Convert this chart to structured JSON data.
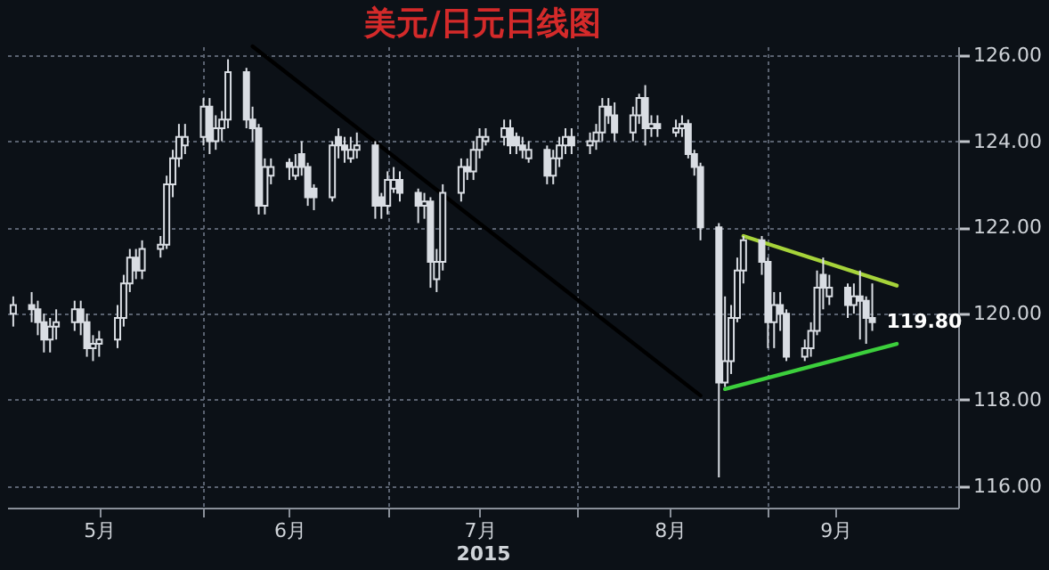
{
  "chart_data": {
    "type": "candlestick",
    "title": "美元/日元日线图",
    "xlabel": "2015",
    "x": [
      "2015-05-01",
      "2015-05-04",
      "2015-05-05",
      "2015-05-06",
      "2015-05-07",
      "2015-05-08",
      "2015-05-11",
      "2015-05-12",
      "2015-05-13",
      "2015-05-14",
      "2015-05-15",
      "2015-05-18",
      "2015-05-19",
      "2015-05-20",
      "2015-05-21",
      "2015-05-22",
      "2015-05-25",
      "2015-05-26",
      "2015-05-27",
      "2015-05-28",
      "2015-05-29",
      "2015-06-01",
      "2015-06-02",
      "2015-06-03",
      "2015-06-04",
      "2015-06-05",
      "2015-06-08",
      "2015-06-09",
      "2015-06-10",
      "2015-06-11",
      "2015-06-12",
      "2015-06-15",
      "2015-06-16",
      "2015-06-17",
      "2015-06-18",
      "2015-06-19",
      "2015-06-22",
      "2015-06-23",
      "2015-06-24",
      "2015-06-25",
      "2015-06-26",
      "2015-06-29",
      "2015-06-30",
      "2015-07-01",
      "2015-07-02",
      "2015-07-03",
      "2015-07-06",
      "2015-07-07",
      "2015-07-08",
      "2015-07-09",
      "2015-07-10",
      "2015-07-13",
      "2015-07-14",
      "2015-07-15",
      "2015-07-16",
      "2015-07-17",
      "2015-07-20",
      "2015-07-21",
      "2015-07-22",
      "2015-07-23",
      "2015-07-24",
      "2015-07-27",
      "2015-07-28",
      "2015-07-29",
      "2015-07-30",
      "2015-07-31",
      "2015-08-03",
      "2015-08-04",
      "2015-08-05",
      "2015-08-06",
      "2015-08-07",
      "2015-08-10",
      "2015-08-11",
      "2015-08-12",
      "2015-08-13",
      "2015-08-14",
      "2015-08-17",
      "2015-08-18",
      "2015-08-19",
      "2015-08-20",
      "2015-08-21",
      "2015-08-24",
      "2015-08-25",
      "2015-08-26",
      "2015-08-27",
      "2015-08-28",
      "2015-08-31",
      "2015-09-01",
      "2015-09-02",
      "2015-09-03",
      "2015-09-04",
      "2015-09-07",
      "2015-09-08",
      "2015-09-09",
      "2015-09-10",
      "2015-09-11",
      "2015-09-14",
      "2015-09-15",
      "2015-09-16",
      "2015-09-17",
      "2015-09-18"
    ],
    "ohlc": [
      [
        120.0,
        120.4,
        119.7,
        120.2
      ],
      [
        120.2,
        120.5,
        119.8,
        120.1
      ],
      [
        120.1,
        120.3,
        119.5,
        119.8
      ],
      [
        119.8,
        120.0,
        119.1,
        119.4
      ],
      [
        119.4,
        119.9,
        119.1,
        119.7
      ],
      [
        119.7,
        120.1,
        119.4,
        119.8
      ],
      [
        119.8,
        120.3,
        119.6,
        120.1
      ],
      [
        120.1,
        120.3,
        119.5,
        119.8
      ],
      [
        119.8,
        120.0,
        119.0,
        119.2
      ],
      [
        119.2,
        119.5,
        118.9,
        119.3
      ],
      [
        119.3,
        119.6,
        119.0,
        119.4
      ],
      [
        119.4,
        120.2,
        119.2,
        119.9
      ],
      [
        119.9,
        120.9,
        119.7,
        120.7
      ],
      [
        120.7,
        121.5,
        120.5,
        121.3
      ],
      [
        121.3,
        121.5,
        120.8,
        121.0
      ],
      [
        121.0,
        121.7,
        120.8,
        121.5
      ],
      [
        121.5,
        121.8,
        121.3,
        121.6
      ],
      [
        121.6,
        123.2,
        121.5,
        123.0
      ],
      [
        123.0,
        123.8,
        122.7,
        123.6
      ],
      [
        123.6,
        124.4,
        123.4,
        124.1
      ],
      [
        123.9,
        124.4,
        123.7,
        124.1
      ],
      [
        124.1,
        125.0,
        123.9,
        124.8
      ],
      [
        124.8,
        125.0,
        123.7,
        124.0
      ],
      [
        124.0,
        124.6,
        123.8,
        124.3
      ],
      [
        124.3,
        124.7,
        124.0,
        124.5
      ],
      [
        124.5,
        125.9,
        124.3,
        125.6
      ],
      [
        125.6,
        125.7,
        124.3,
        124.5
      ],
      [
        124.5,
        124.8,
        124.0,
        124.3
      ],
      [
        124.3,
        124.4,
        122.3,
        122.5
      ],
      [
        122.5,
        123.6,
        122.3,
        123.4
      ],
      [
        123.2,
        123.6,
        123.0,
        123.4
      ],
      [
        123.5,
        123.6,
        123.1,
        123.4
      ],
      [
        123.2,
        123.7,
        123.1,
        123.4
      ],
      [
        123.7,
        124.0,
        123.2,
        123.4
      ],
      [
        123.4,
        123.5,
        122.5,
        122.7
      ],
      [
        122.9,
        123.0,
        122.4,
        122.7
      ],
      [
        122.7,
        124.0,
        122.6,
        123.9
      ],
      [
        124.1,
        124.3,
        123.6,
        123.9
      ],
      [
        123.9,
        124.1,
        123.5,
        123.8
      ],
      [
        123.6,
        124.1,
        123.5,
        123.8
      ],
      [
        123.8,
        124.2,
        123.6,
        123.9
      ],
      [
        123.9,
        124.0,
        122.2,
        122.5
      ],
      [
        122.7,
        122.8,
        122.2,
        122.5
      ],
      [
        122.5,
        123.3,
        122.3,
        123.1
      ],
      [
        122.9,
        123.4,
        122.8,
        123.1
      ],
      [
        123.1,
        123.3,
        122.6,
        122.8
      ],
      [
        122.8,
        122.9,
        122.1,
        122.5
      ],
      [
        122.5,
        122.8,
        122.2,
        122.6
      ],
      [
        122.6,
        122.7,
        120.6,
        121.2
      ],
      [
        120.8,
        121.5,
        120.5,
        121.2
      ],
      [
        121.2,
        123.0,
        121.0,
        122.8
      ],
      [
        122.8,
        123.6,
        122.6,
        123.4
      ],
      [
        123.4,
        123.6,
        123.1,
        123.3
      ],
      [
        123.3,
        124.0,
        123.1,
        123.8
      ],
      [
        123.8,
        124.3,
        123.6,
        124.1
      ],
      [
        124.0,
        124.3,
        123.9,
        124.1
      ],
      [
        124.1,
        124.5,
        123.9,
        124.3
      ],
      [
        124.3,
        124.5,
        123.7,
        123.9
      ],
      [
        124.1,
        124.2,
        123.7,
        123.9
      ],
      [
        123.9,
        124.1,
        123.6,
        123.8
      ],
      [
        123.6,
        124.0,
        123.5,
        123.8
      ],
      [
        123.8,
        123.9,
        123.0,
        123.2
      ],
      [
        123.2,
        123.8,
        123.0,
        123.6
      ],
      [
        123.6,
        124.1,
        123.4,
        123.9
      ],
      [
        123.9,
        124.3,
        123.7,
        124.1
      ],
      [
        124.1,
        124.3,
        123.7,
        123.9
      ],
      [
        123.9,
        124.2,
        123.7,
        124.0
      ],
      [
        124.0,
        124.4,
        123.8,
        124.2
      ],
      [
        124.2,
        125.0,
        124.0,
        124.8
      ],
      [
        124.8,
        125.0,
        124.4,
        124.6
      ],
      [
        124.6,
        124.9,
        124.0,
        124.2
      ],
      [
        124.2,
        124.8,
        124.0,
        124.6
      ],
      [
        124.6,
        125.1,
        124.4,
        125.0
      ],
      [
        125.0,
        125.3,
        123.9,
        124.3
      ],
      [
        124.3,
        124.6,
        124.1,
        124.4
      ],
      [
        124.4,
        124.6,
        124.1,
        124.3
      ],
      [
        124.2,
        124.5,
        124.1,
        124.3
      ],
      [
        124.3,
        124.6,
        124.1,
        124.4
      ],
      [
        124.4,
        124.5,
        123.6,
        123.7
      ],
      [
        123.7,
        123.8,
        123.2,
        123.4
      ],
      [
        123.4,
        123.5,
        121.7,
        122.0
      ],
      [
        122.0,
        122.1,
        116.2,
        118.4
      ],
      [
        118.4,
        120.4,
        118.3,
        118.9
      ],
      [
        118.9,
        120.2,
        118.6,
        119.9
      ],
      [
        119.9,
        121.3,
        119.8,
        121.0
      ],
      [
        121.0,
        121.8,
        120.7,
        121.7
      ],
      [
        121.7,
        121.8,
        120.9,
        121.2
      ],
      [
        121.2,
        121.3,
        119.2,
        119.8
      ],
      [
        119.8,
        120.5,
        119.2,
        120.2
      ],
      [
        120.2,
        120.5,
        119.6,
        120.0
      ],
      [
        120.0,
        120.1,
        118.9,
        119.0
      ],
      [
        119.0,
        119.4,
        118.9,
        119.2
      ],
      [
        119.2,
        119.8,
        119.0,
        119.6
      ],
      [
        119.6,
        121.0,
        119.5,
        120.6
      ],
      [
        120.9,
        121.3,
        120.1,
        120.6
      ],
      [
        120.4,
        120.9,
        120.2,
        120.6
      ],
      [
        120.6,
        120.7,
        119.9,
        120.2
      ],
      [
        120.2,
        120.7,
        120.0,
        120.4
      ],
      [
        120.4,
        121.0,
        119.4,
        120.3
      ],
      [
        120.3,
        120.4,
        119.3,
        119.9
      ],
      [
        119.9,
        120.7,
        119.6,
        119.8
      ]
    ],
    "color": "#d9dde3",
    "series": [
      {
        "type": "line",
        "color": "#000000",
        "x": [
          "2015-06-09",
          "2015-08-21"
        ],
        "values": [
          126.2,
          118.1
        ]
      },
      {
        "type": "line",
        "color": "#a6d33a",
        "x": [
          "2015-08-28",
          "2015-09-22"
        ],
        "values": [
          121.8,
          120.65
        ]
      },
      {
        "type": "line",
        "color": "#3ccf3c",
        "x": [
          "2015-08-25",
          "2015-09-22"
        ],
        "values": [
          118.25,
          119.3
        ]
      }
    ],
    "annotations": [
      {
        "text": "119.80",
        "x": "2015-09-18",
        "y": 119.8
      }
    ],
    "xlim": [
      "2015-04-30",
      "2015-10-02"
    ],
    "xticks": [
      {
        "value": "2015-05-15",
        "label": "5月"
      },
      {
        "value": "2015-06-01",
        "label": null
      },
      {
        "value": "2015-06-15",
        "label": "6月"
      },
      {
        "value": "2015-07-01",
        "label": null
      },
      {
        "value": "2015-07-16",
        "label": "7月"
      },
      {
        "value": "2015-08-01",
        "label": null
      },
      {
        "value": "2015-08-16",
        "label": "8月"
      },
      {
        "value": "2015-09-01",
        "label": null
      },
      {
        "value": "2015-09-12",
        "label": "9月"
      }
    ],
    "ylim": [
      115.5,
      126.2
    ],
    "yticks": [
      {
        "value": 116,
        "label": "116.00"
      },
      {
        "value": 118,
        "label": "118.00"
      },
      {
        "value": 120,
        "label": "120.00"
      },
      {
        "value": 122,
        "label": "122.00"
      },
      {
        "value": 124,
        "label": "124.00"
      },
      {
        "value": 126,
        "label": "126.00"
      }
    ],
    "grid": true
  }
}
